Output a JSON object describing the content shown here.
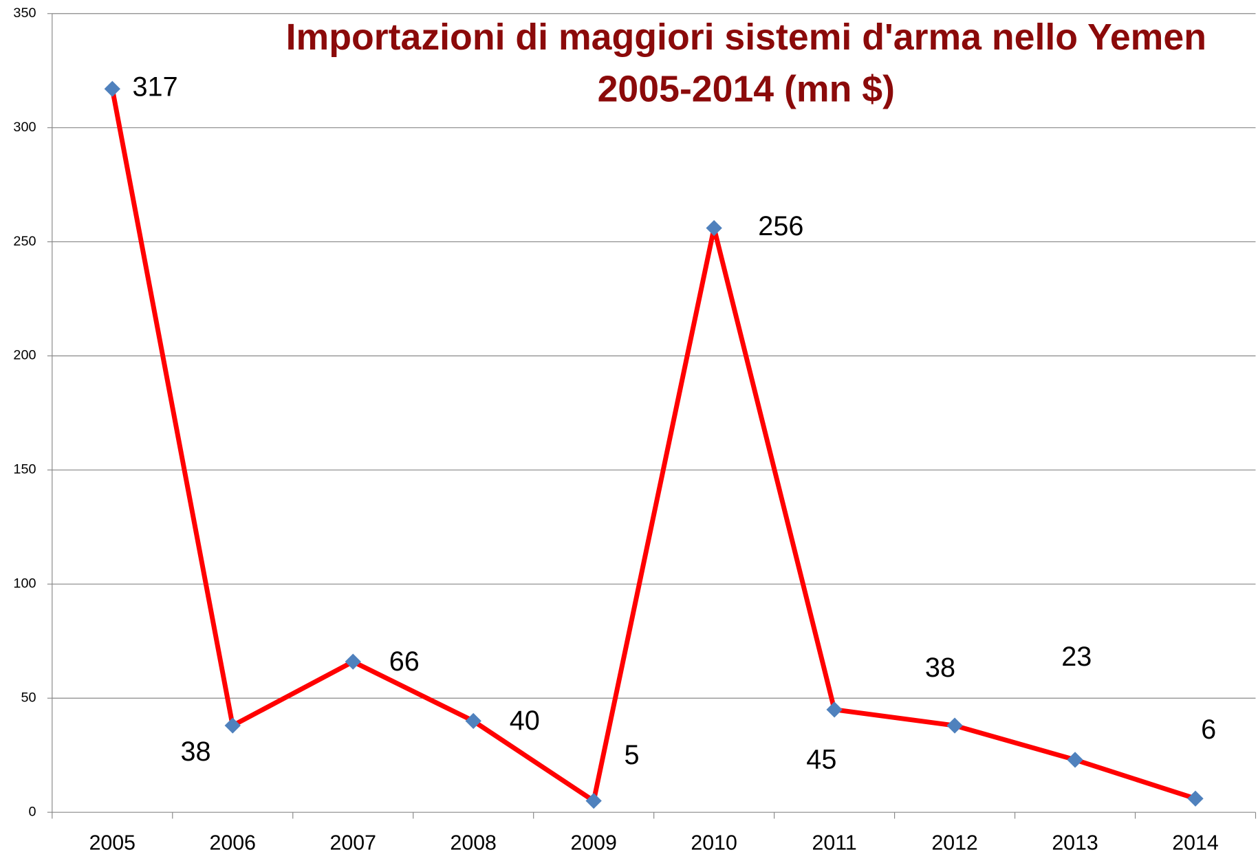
{
  "chart_data": {
    "type": "line",
    "title": [
      "Importazioni di maggiori sistemi d'arma nello Yemen",
      "2005-2014 (mn $)"
    ],
    "categories": [
      "2005",
      "2006",
      "2007",
      "2008",
      "2009",
      "2010",
      "2011",
      "2012",
      "2013",
      "2014"
    ],
    "series": [
      {
        "name": "Importazioni",
        "color": "#ff0000",
        "marker_color": "#4f81bd",
        "values": [
          317,
          38,
          66,
          40,
          5,
          256,
          45,
          38,
          23,
          6
        ]
      }
    ],
    "ylim": [
      0,
      350
    ],
    "yticks": [
      0,
      50,
      100,
      150,
      200,
      250,
      300,
      350
    ],
    "grid": true,
    "title_color": "#8b0a0a"
  }
}
